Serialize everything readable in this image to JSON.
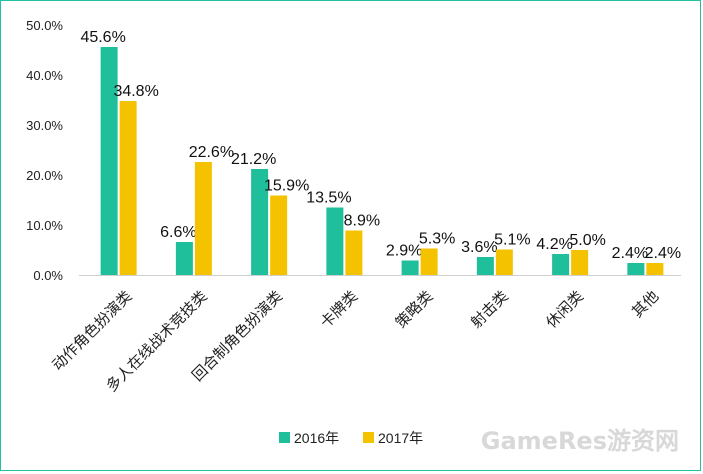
{
  "chart_data": {
    "type": "bar",
    "categories": [
      "动作角色扮演类",
      "多人在线战术竞技类",
      "回合制角色扮演类",
      "卡牌类",
      "策略类",
      "射击类",
      "休闲类",
      "其他"
    ],
    "series": [
      {
        "name": "2016年",
        "values": [
          45.6,
          6.6,
          21.2,
          13.5,
          2.9,
          3.6,
          4.2,
          2.4
        ],
        "labels": [
          "45.6%",
          "6.6%",
          "21.2%",
          "13.5%",
          "2.9%",
          "3.6%",
          "4.2%",
          "2.4%"
        ],
        "color": "#1ebf9a"
      },
      {
        "name": "2017年",
        "values": [
          34.8,
          22.6,
          15.9,
          8.9,
          5.3,
          5.1,
          5.0,
          2.4
        ],
        "labels": [
          "34.8%",
          "22.6%",
          "15.9%",
          "8.9%",
          "5.3%",
          "5.1%",
          "5.0%",
          "2.4%"
        ],
        "color": "#f5c200"
      }
    ],
    "ylim": [
      0,
      50
    ],
    "yticks": [
      0,
      10,
      20,
      30,
      40,
      50
    ],
    "ytick_labels": [
      "0.0%",
      "10.0%",
      "20.0%",
      "30.0%",
      "40.0%",
      "50.0%"
    ],
    "grid": false,
    "legend": "bottom"
  },
  "watermark": "GameRes游资网",
  "colors": {
    "border": "#20c0a0"
  }
}
